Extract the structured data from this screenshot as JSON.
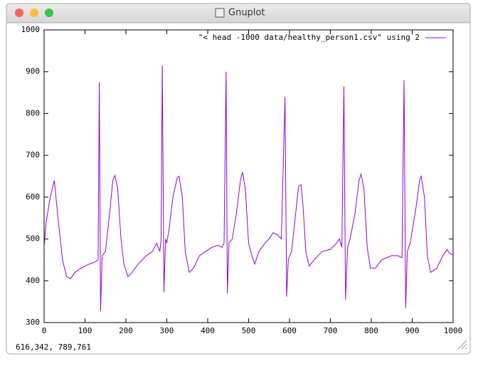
{
  "window": {
    "title": "Gnuplot",
    "status": "616,342,  789,761"
  },
  "chart_data": {
    "type": "line",
    "x": [
      0,
      5,
      15,
      25,
      35,
      45,
      55,
      65,
      75,
      90,
      110,
      125,
      132,
      135,
      138,
      142,
      150,
      160,
      168,
      173,
      180,
      188,
      195,
      205,
      215,
      230,
      250,
      265,
      275,
      283,
      286,
      289,
      293,
      297,
      300,
      305,
      315,
      325,
      330,
      338,
      345,
      355,
      365,
      380,
      395,
      410,
      425,
      435,
      440,
      445,
      448,
      452,
      460,
      470,
      480,
      485,
      492,
      500,
      508,
      515,
      525,
      540,
      550,
      560,
      570,
      580,
      589,
      593,
      597,
      605,
      615,
      622,
      628,
      633,
      640,
      648,
      660,
      680,
      700,
      715,
      722,
      728,
      733,
      737,
      742,
      748,
      760,
      770,
      775,
      782,
      790,
      798,
      810,
      825,
      850,
      865,
      875,
      880,
      884,
      888,
      895,
      910,
      918,
      922,
      930,
      937,
      945,
      960,
      975,
      985,
      992,
      1000
    ],
    "series": [
      {
        "name": "\"< head -1000 data/healthy_person1.csv\" using 2",
        "color": "#9400d3",
        "values": [
          480,
          540,
          600,
          640,
          540,
          450,
          410,
          405,
          420,
          430,
          440,
          445,
          450,
          875,
          327,
          460,
          470,
          560,
          640,
          652,
          620,
          500,
          440,
          410,
          420,
          440,
          460,
          470,
          490,
          470,
          500,
          915,
          373,
          500,
          490,
          520,
          600,
          645,
          650,
          600,
          470,
          420,
          430,
          460,
          470,
          480,
          485,
          480,
          490,
          900,
          370,
          490,
          500,
          560,
          640,
          660,
          620,
          490,
          460,
          440,
          470,
          490,
          500,
          515,
          510,
          500,
          840,
          362,
          450,
          470,
          560,
          625,
          630,
          580,
          470,
          435,
          450,
          470,
          475,
          490,
          500,
          480,
          865,
          355,
          480,
          500,
          560,
          640,
          655,
          620,
          480,
          430,
          430,
          450,
          460,
          460,
          455,
          880,
          335,
          470,
          490,
          580,
          640,
          650,
          600,
          460,
          420,
          430,
          460,
          475,
          465,
          462
        ]
      }
    ],
    "xlim": [
      0,
      1000
    ],
    "ylim": [
      300,
      1000
    ],
    "xticks": [
      0,
      100,
      200,
      300,
      400,
      500,
      600,
      700,
      800,
      900,
      1000
    ],
    "yticks": [
      300,
      400,
      500,
      600,
      700,
      800,
      900,
      1000
    ],
    "legend": "top-right"
  }
}
